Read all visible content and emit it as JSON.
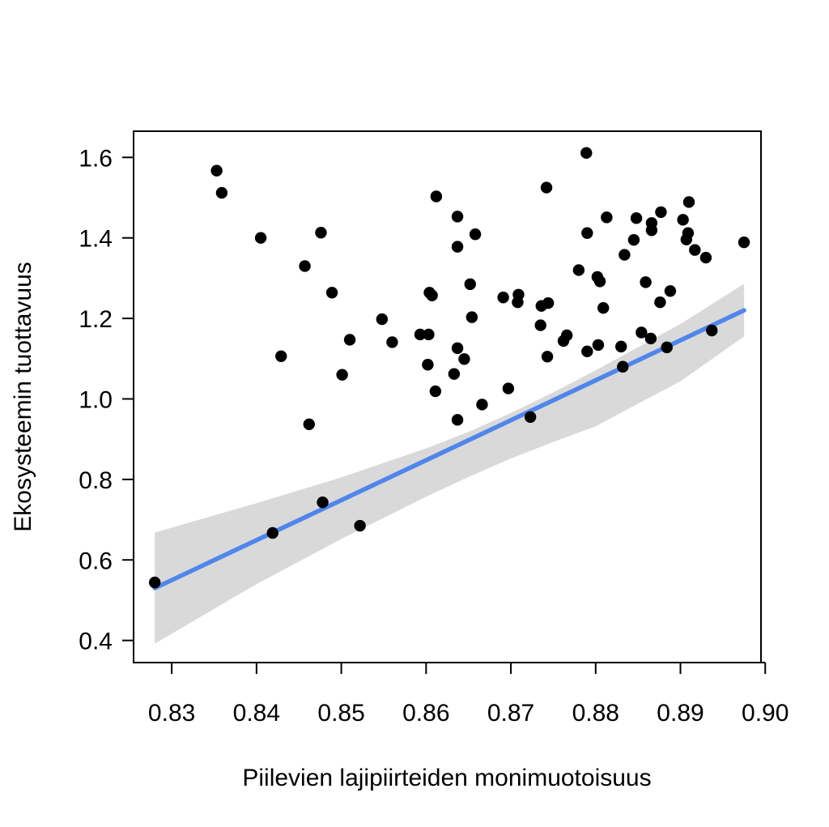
{
  "chart_data": {
    "type": "scatter",
    "title": "",
    "xlabel": "Piilevien lajipiirteiden monimuotoisuus",
    "ylabel": "Ekosysteemin tuottavuus",
    "xlim": [
      0.8255,
      0.8995
    ],
    "ylim": [
      0.345,
      1.665
    ],
    "x_ticks": [
      0.83,
      0.84,
      0.85,
      0.86,
      0.87,
      0.88,
      0.89,
      0.9
    ],
    "x_tick_labels": [
      "0.83",
      "0.84",
      "0.85",
      "0.86",
      "0.87",
      "0.88",
      "0.89",
      "0.90"
    ],
    "y_ticks": [
      0.4,
      0.6,
      0.8,
      1.0,
      1.2,
      1.4,
      1.6
    ],
    "y_tick_labels": [
      "0.4",
      "0.6",
      "0.8",
      "1.0",
      "1.2",
      "1.4",
      "1.6"
    ],
    "grid": false,
    "points": [
      [
        0.828,
        0.544
      ],
      [
        0.8353,
        1.567
      ],
      [
        0.8359,
        1.512
      ],
      [
        0.8405,
        1.4
      ],
      [
        0.8419,
        0.667
      ],
      [
        0.8429,
        1.106
      ],
      [
        0.8457,
        1.33
      ],
      [
        0.8462,
        0.937
      ],
      [
        0.8476,
        1.413
      ],
      [
        0.8478,
        0.743
      ],
      [
        0.8489,
        1.264
      ],
      [
        0.8501,
        1.06
      ],
      [
        0.851,
        1.147
      ],
      [
        0.8522,
        0.685
      ],
      [
        0.8548,
        1.198
      ],
      [
        0.856,
        1.141
      ],
      [
        0.8593,
        1.16
      ],
      [
        0.8603,
        1.16
      ],
      [
        0.8602,
        1.085
      ],
      [
        0.8604,
        1.264
      ],
      [
        0.8607,
        1.257
      ],
      [
        0.8611,
        1.019
      ],
      [
        0.8612,
        1.503
      ],
      [
        0.8633,
        1.062
      ],
      [
        0.8637,
        1.453
      ],
      [
        0.8637,
        1.378
      ],
      [
        0.8637,
        1.126
      ],
      [
        0.8637,
        0.948
      ],
      [
        0.8645,
        1.099
      ],
      [
        0.8652,
        1.285
      ],
      [
        0.8654,
        1.203
      ],
      [
        0.8658,
        1.409
      ],
      [
        0.8666,
        0.986
      ],
      [
        0.8691,
        1.252
      ],
      [
        0.8697,
        1.026
      ],
      [
        0.8708,
        1.24
      ],
      [
        0.8709,
        1.259
      ],
      [
        0.8723,
        0.955
      ],
      [
        0.8735,
        1.183
      ],
      [
        0.8736,
        1.231
      ],
      [
        0.8742,
        1.525
      ],
      [
        0.8743,
        1.105
      ],
      [
        0.8744,
        1.238
      ],
      [
        0.8762,
        1.144
      ],
      [
        0.8766,
        1.158
      ],
      [
        0.878,
        1.32
      ],
      [
        0.8789,
        1.611
      ],
      [
        0.879,
        1.412
      ],
      [
        0.879,
        1.118
      ],
      [
        0.8802,
        1.303
      ],
      [
        0.8803,
        1.134
      ],
      [
        0.8805,
        1.292
      ],
      [
        0.8809,
        1.226
      ],
      [
        0.8813,
        1.451
      ],
      [
        0.883,
        1.13
      ],
      [
        0.8832,
        1.08
      ],
      [
        0.8834,
        1.358
      ],
      [
        0.8845,
        1.395
      ],
      [
        0.8848,
        1.449
      ],
      [
        0.8854,
        1.165
      ],
      [
        0.8859,
        1.29
      ],
      [
        0.8865,
        1.15
      ],
      [
        0.8866,
        1.419
      ],
      [
        0.8866,
        1.437
      ],
      [
        0.8876,
        1.24
      ],
      [
        0.8877,
        1.464
      ],
      [
        0.8884,
        1.128
      ],
      [
        0.8888,
        1.268
      ],
      [
        0.8903,
        1.445
      ],
      [
        0.8907,
        1.396
      ],
      [
        0.8909,
        1.412
      ],
      [
        0.891,
        1.489
      ],
      [
        0.8917,
        1.37
      ],
      [
        0.893,
        1.351
      ],
      [
        0.8937,
        1.17
      ],
      [
        0.8975,
        1.389
      ]
    ],
    "fit_line": {
      "x": [
        0.828,
        0.8975
      ],
      "y": [
        0.53,
        1.22
      ],
      "color": "#4F86EC"
    },
    "confidence_band": {
      "x": [
        0.828,
        0.84,
        0.85,
        0.86,
        0.865,
        0.87,
        0.875,
        0.88,
        0.89,
        0.8975
      ],
      "upper": [
        0.668,
        0.741,
        0.805,
        0.877,
        0.918,
        0.965,
        1.016,
        1.071,
        1.186,
        1.286
      ],
      "lower": [
        0.392,
        0.54,
        0.652,
        0.757,
        0.806,
        0.852,
        0.893,
        0.932,
        1.044,
        1.155
      ],
      "color": "#D9D9D9"
    },
    "point_color": "#000000"
  }
}
